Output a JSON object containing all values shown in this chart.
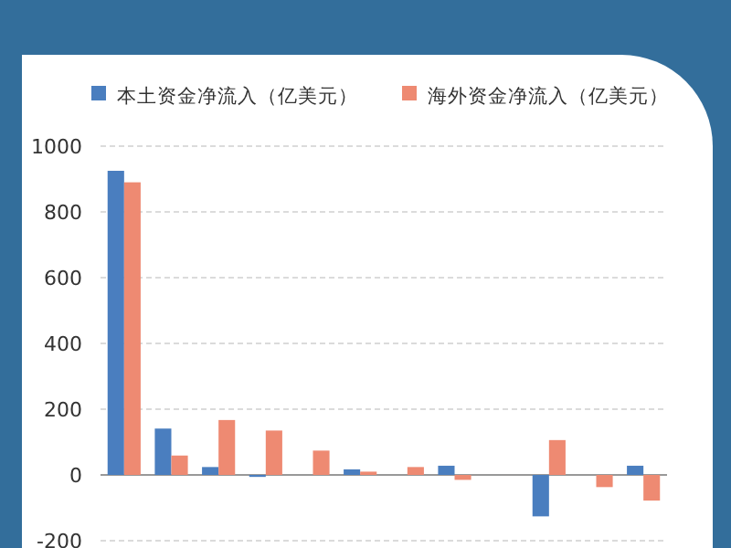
{
  "chart_data": {
    "type": "bar",
    "categories": [
      null,
      null,
      null,
      null,
      null,
      null,
      null,
      null,
      null,
      null,
      null,
      null
    ],
    "series": [
      {
        "name": "本土资金净流入（亿美元）",
        "color": "#4a7ebf",
        "values": [
          925,
          141,
          24,
          -6,
          0,
          17,
          0,
          28,
          0,
          -126,
          0,
          28
        ]
      },
      {
        "name": "海外资金净流入（亿美元）",
        "color": "#ee8a72",
        "values": [
          890,
          59,
          167,
          135,
          74,
          10,
          24,
          -15,
          0,
          106,
          -37,
          -78
        ]
      }
    ],
    "ylim": [
      -200,
      1000
    ],
    "yticks": [
      -200,
      0,
      200,
      400,
      600,
      800,
      1000
    ],
    "grid": "y",
    "legend": "top"
  }
}
